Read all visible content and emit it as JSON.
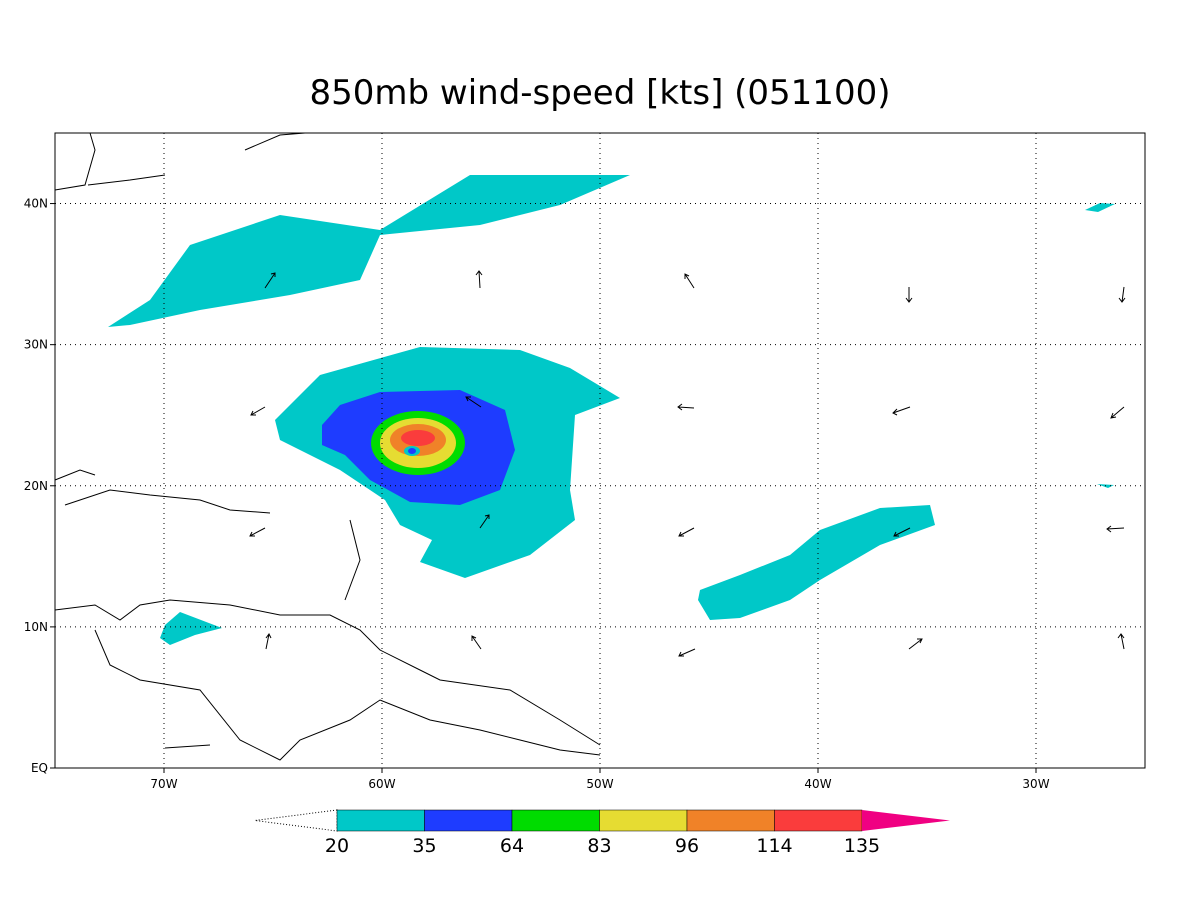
{
  "title": "850mb wind-speed [kts] (051100)",
  "map": {
    "xlim": [
      -75,
      -25
    ],
    "ylim": [
      0,
      45
    ],
    "xticks": [
      {
        "value": -70,
        "label": "70W"
      },
      {
        "value": -60,
        "label": "60W"
      },
      {
        "value": -50,
        "label": "50W"
      },
      {
        "value": -40,
        "label": "40W"
      },
      {
        "value": -30,
        "label": "30W"
      }
    ],
    "yticks": [
      {
        "value": 0,
        "label": "EQ"
      },
      {
        "value": 10,
        "label": "10N"
      },
      {
        "value": 20,
        "label": "20N"
      },
      {
        "value": 30,
        "label": "30N"
      },
      {
        "value": 40,
        "label": "40N"
      }
    ],
    "grid": true
  },
  "colorbar": {
    "levels": [
      20,
      35,
      64,
      83,
      96,
      114,
      135
    ],
    "colors": [
      "#00c8c8",
      "#1e3cff",
      "#00dc00",
      "#e6dc32",
      "#f08228",
      "#fa3c3c",
      "#f00082"
    ]
  }
}
